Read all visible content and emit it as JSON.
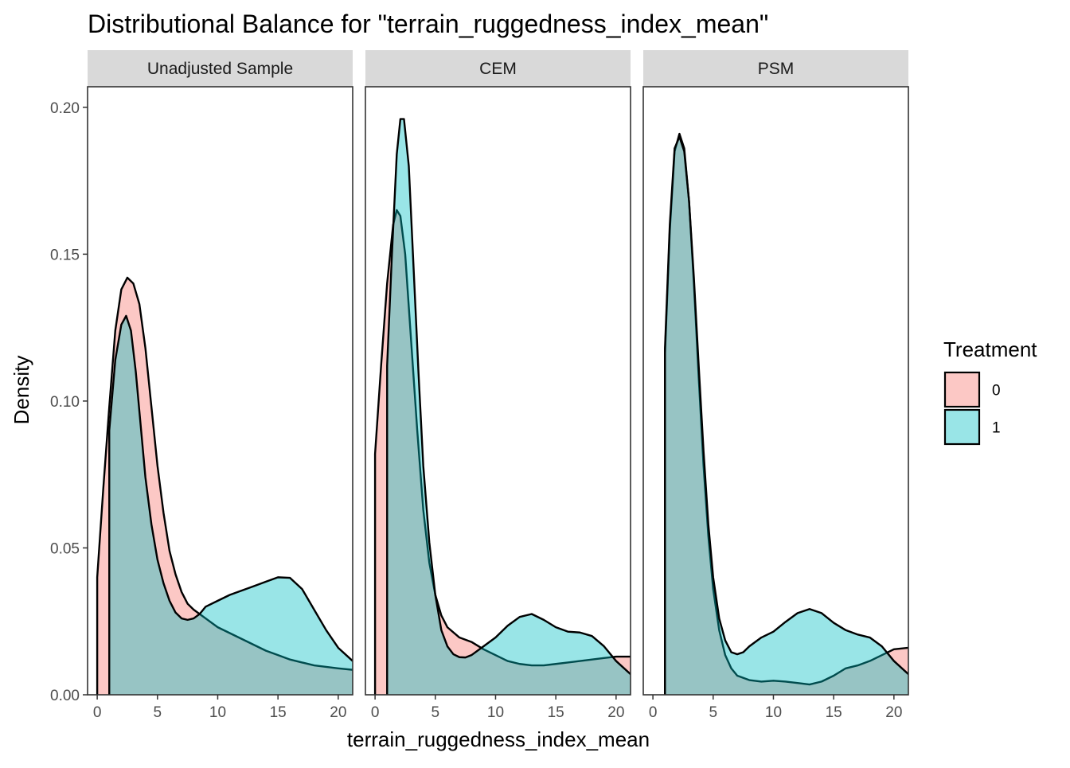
{
  "chart_data": {
    "type": "area",
    "title": "Distributional Balance for \"terrain_ruggedness_index_mean\"",
    "xlabel": "terrain_ruggedness_index_mean",
    "ylabel": "Density",
    "xlim": [
      -0.8,
      21.2
    ],
    "ylim": [
      0,
      0.207
    ],
    "x_ticks": [
      0,
      5,
      10,
      15,
      20
    ],
    "x_tick_labels": [
      "0",
      "5",
      "10",
      "15",
      "20"
    ],
    "y_ticks": [
      0,
      0.05,
      0.1,
      0.15,
      0.2
    ],
    "y_tick_labels": [
      "0.00",
      "0.05",
      "0.10",
      "0.15",
      "0.20"
    ],
    "grid": false,
    "legend": {
      "title": "Treatment",
      "position": "right",
      "entries": [
        {
          "label": "0",
          "color": "#F8766D"
        },
        {
          "label": "1",
          "color": "#00BFC4"
        }
      ]
    },
    "fill_alpha": 0.4,
    "panels": [
      {
        "name": "Unadjusted Sample",
        "series": [
          {
            "name": "0",
            "color": "#F8766D",
            "points": [
              [
                0,
                0.04
              ],
              [
                0.5,
                0.07
              ],
              [
                1,
                0.098
              ],
              [
                1.5,
                0.124
              ],
              [
                2,
                0.138
              ],
              [
                2.5,
                0.142
              ],
              [
                3,
                0.14
              ],
              [
                3.5,
                0.133
              ],
              [
                4,
                0.118
              ],
              [
                4.5,
                0.098
              ],
              [
                5,
                0.078
              ],
              [
                5.5,
                0.062
              ],
              [
                6,
                0.049
              ],
              [
                6.5,
                0.041
              ],
              [
                7,
                0.035
              ],
              [
                7.5,
                0.031
              ],
              [
                8,
                0.029
              ],
              [
                9,
                0.026
              ],
              [
                10,
                0.023
              ],
              [
                11,
                0.021
              ],
              [
                12,
                0.019
              ],
              [
                13,
                0.017
              ],
              [
                14,
                0.015
              ],
              [
                15,
                0.0135
              ],
              [
                16,
                0.012
              ],
              [
                17,
                0.011
              ],
              [
                18,
                0.01
              ],
              [
                19,
                0.0095
              ],
              [
                20,
                0.009
              ],
              [
                21.2,
                0.0085
              ]
            ]
          },
          {
            "name": "1",
            "color": "#00BFC4",
            "points": [
              [
                1,
                0.09
              ],
              [
                1.5,
                0.114
              ],
              [
                2,
                0.126
              ],
              [
                2.4,
                0.129
              ],
              [
                2.8,
                0.124
              ],
              [
                3.2,
                0.11
              ],
              [
                3.6,
                0.092
              ],
              [
                4,
                0.074
              ],
              [
                4.5,
                0.058
              ],
              [
                5,
                0.046
              ],
              [
                5.5,
                0.038
              ],
              [
                6,
                0.032
              ],
              [
                6.5,
                0.028
              ],
              [
                7,
                0.026
              ],
              [
                7.5,
                0.0255
              ],
              [
                8,
                0.026
              ],
              [
                8.5,
                0.0275
              ],
              [
                9,
                0.03
              ],
              [
                10,
                0.032
              ],
              [
                11,
                0.034
              ],
              [
                12,
                0.0355
              ],
              [
                13,
                0.037
              ],
              [
                14,
                0.0385
              ],
              [
                15,
                0.04
              ],
              [
                16,
                0.0398
              ],
              [
                17,
                0.036
              ],
              [
                18,
                0.029
              ],
              [
                19,
                0.022
              ],
              [
                20,
                0.016
              ],
              [
                21.2,
                0.0115
              ]
            ]
          }
        ]
      },
      {
        "name": "CEM",
        "series": [
          {
            "name": "0",
            "color": "#F8766D",
            "points": [
              [
                0,
                0.082
              ],
              [
                0.5,
                0.112
              ],
              [
                1,
                0.14
              ],
              [
                1.5,
                0.16
              ],
              [
                1.8,
                0.165
              ],
              [
                2.1,
                0.163
              ],
              [
                2.5,
                0.15
              ],
              [
                3,
                0.12
              ],
              [
                3.5,
                0.09
              ],
              [
                4,
                0.063
              ],
              [
                4.5,
                0.045
              ],
              [
                5,
                0.034
              ],
              [
                5.5,
                0.027
              ],
              [
                6,
                0.023
              ],
              [
                7,
                0.0195
              ],
              [
                8,
                0.018
              ],
              [
                9,
                0.0155
              ],
              [
                10,
                0.0135
              ],
              [
                11,
                0.0115
              ],
              [
                12,
                0.0105
              ],
              [
                13,
                0.01
              ],
              [
                14,
                0.01
              ],
              [
                15,
                0.0105
              ],
              [
                16,
                0.011
              ],
              [
                17,
                0.0115
              ],
              [
                18,
                0.012
              ],
              [
                19,
                0.0125
              ],
              [
                20,
                0.013
              ],
              [
                21.2,
                0.013
              ]
            ]
          },
          {
            "name": "1",
            "color": "#00BFC4",
            "points": [
              [
                1,
                0.112
              ],
              [
                1.4,
                0.15
              ],
              [
                1.8,
                0.184
              ],
              [
                2.1,
                0.196
              ],
              [
                2.4,
                0.196
              ],
              [
                2.8,
                0.18
              ],
              [
                3.2,
                0.145
              ],
              [
                3.6,
                0.11
              ],
              [
                4,
                0.078
              ],
              [
                4.5,
                0.052
              ],
              [
                5,
                0.034
              ],
              [
                5.5,
                0.022
              ],
              [
                6,
                0.0165
              ],
              [
                6.5,
                0.0138
              ],
              [
                7,
                0.0128
              ],
              [
                7.5,
                0.0127
              ],
              [
                8,
                0.0135
              ],
              [
                9,
                0.0165
              ],
              [
                10,
                0.0195
              ],
              [
                11,
                0.0235
              ],
              [
                12,
                0.0265
              ],
              [
                13,
                0.0275
              ],
              [
                14,
                0.0255
              ],
              [
                15,
                0.023
              ],
              [
                16,
                0.0215
              ],
              [
                17,
                0.0212
              ],
              [
                18,
                0.02
              ],
              [
                19,
                0.0165
              ],
              [
                20,
                0.0115
              ],
              [
                21.2,
                0.007
              ]
            ]
          }
        ]
      },
      {
        "name": "PSM",
        "series": [
          {
            "name": "0",
            "color": "#F8766D",
            "points": [
              [
                1,
                0.116
              ],
              [
                1.4,
                0.158
              ],
              [
                1.8,
                0.185
              ],
              [
                2.2,
                0.191
              ],
              [
                2.6,
                0.186
              ],
              [
                3,
                0.168
              ],
              [
                3.4,
                0.14
              ],
              [
                3.8,
                0.108
              ],
              [
                4.2,
                0.078
              ],
              [
                4.6,
                0.054
              ],
              [
                5,
                0.036
              ],
              [
                5.5,
                0.022
              ],
              [
                6,
                0.0135
              ],
              [
                6.5,
                0.009
              ],
              [
                7,
                0.0065
              ],
              [
                8,
                0.005
              ],
              [
                9,
                0.0045
              ],
              [
                10,
                0.0048
              ],
              [
                11,
                0.0045
              ],
              [
                12,
                0.004
              ],
              [
                13,
                0.0035
              ],
              [
                14,
                0.0045
              ],
              [
                15,
                0.0065
              ],
              [
                16,
                0.009
              ],
              [
                17,
                0.01
              ],
              [
                18,
                0.0115
              ],
              [
                19,
                0.0135
              ],
              [
                20,
                0.0155
              ],
              [
                21.2,
                0.016
              ]
            ]
          },
          {
            "name": "1",
            "color": "#00BFC4",
            "points": [
              [
                1,
                0.118
              ],
              [
                1.4,
                0.16
              ],
              [
                1.8,
                0.186
              ],
              [
                2.2,
                0.19
              ],
              [
                2.6,
                0.185
              ],
              [
                3,
                0.168
              ],
              [
                3.4,
                0.142
              ],
              [
                3.8,
                0.112
              ],
              [
                4.2,
                0.083
              ],
              [
                4.6,
                0.058
              ],
              [
                5,
                0.04
              ],
              [
                5.5,
                0.026
              ],
              [
                6,
                0.0185
              ],
              [
                6.5,
                0.0145
              ],
              [
                7,
                0.0138
              ],
              [
                7.5,
                0.0145
              ],
              [
                8,
                0.0165
              ],
              [
                9,
                0.0195
              ],
              [
                10,
                0.0215
              ],
              [
                11,
                0.0248
              ],
              [
                12,
                0.0278
              ],
              [
                13,
                0.0292
              ],
              [
                14,
                0.0278
              ],
              [
                15,
                0.0245
              ],
              [
                16,
                0.022
              ],
              [
                17,
                0.0205
              ],
              [
                18,
                0.0195
              ],
              [
                19,
                0.0165
              ],
              [
                20,
                0.0115
              ],
              [
                21.2,
                0.007
              ]
            ]
          }
        ]
      }
    ]
  }
}
